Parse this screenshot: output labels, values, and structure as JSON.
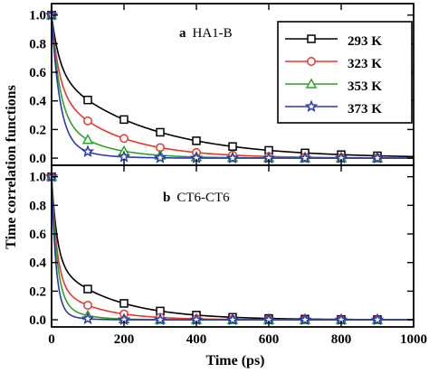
{
  "chart_data": {
    "type": "line",
    "xlabel": "Time (ps)",
    "ylabel": "Time correlation functions",
    "x_ticks": [
      0,
      200,
      400,
      600,
      800,
      1000
    ],
    "y_ticks": [
      0.0,
      0.2,
      0.4,
      0.6,
      0.8,
      1.0
    ],
    "xlim": [
      0,
      1000
    ],
    "ylim": [
      -0.05,
      1.08
    ],
    "marker_x": [
      0,
      100,
      200,
      300,
      400,
      500,
      600,
      700,
      800,
      900
    ],
    "legend": {
      "placement": "top-right of upper panel",
      "entries": [
        {
          "label": "293 K",
          "color": "#000000",
          "marker": "square"
        },
        {
          "label": "323 K",
          "color": "#e8372c",
          "marker": "circle"
        },
        {
          "label": "353 K",
          "color": "#2ea02e",
          "marker": "triangle"
        },
        {
          "label": "373 K",
          "color": "#2b3aa8",
          "marker": "star"
        }
      ]
    },
    "panels": [
      {
        "letter": "a",
        "name": "HA1-B",
        "series": [
          {
            "name": "293 K",
            "color": "#000000",
            "marker": "square",
            "tau": [
              [
                0.4,
                22
              ],
              [
                0.6,
                250
              ]
            ]
          },
          {
            "name": "323 K",
            "color": "#e8372c",
            "marker": "circle",
            "tau": [
              [
                0.52,
                20
              ],
              [
                0.48,
                160
              ]
            ]
          },
          {
            "name": "353 K",
            "color": "#2ea02e",
            "marker": "triangle",
            "tau": [
              [
                0.7,
                22
              ],
              [
                0.3,
                110
              ]
            ]
          },
          {
            "name": "373 K",
            "color": "#2b3aa8",
            "marker": "star",
            "tau": [
              [
                0.85,
                22
              ],
              [
                0.15,
                70
              ]
            ]
          }
        ]
      },
      {
        "letter": "b",
        "name": "CT6-CT6",
        "series": [
          {
            "name": "293 K",
            "color": "#000000",
            "marker": "square",
            "tau": [
              [
                0.6,
                15
              ],
              [
                0.4,
                160
              ]
            ]
          },
          {
            "name": "323 K",
            "color": "#e8372c",
            "marker": "circle",
            "tau": [
              [
                0.75,
                15
              ],
              [
                0.25,
                110
              ]
            ]
          },
          {
            "name": "353 K",
            "color": "#2ea02e",
            "marker": "triangle",
            "tau": [
              [
                0.85,
                15
              ],
              [
                0.15,
                60
              ]
            ]
          },
          {
            "name": "373 K",
            "color": "#2b3aa8",
            "marker": "star",
            "tau": [
              [
                0.92,
                12
              ],
              [
                0.08,
                40
              ]
            ]
          }
        ]
      }
    ]
  }
}
